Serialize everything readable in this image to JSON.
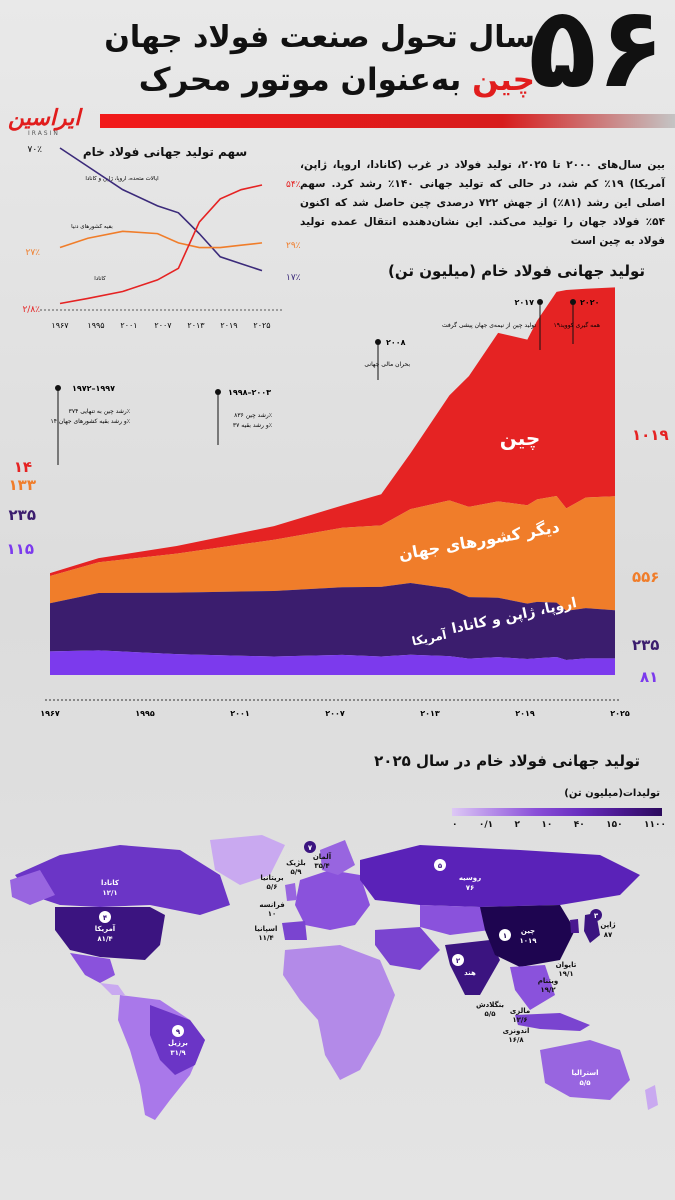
{
  "header": {
    "big_number": "۵۶",
    "title_line1": "سال تحول صنعت فولاد جهان",
    "title_line2_red": "چین",
    "title_line2_rest": "به‌عنوان موتور محرک",
    "logo": "ایراسین",
    "logo_sub": "IRASIN",
    "accent_color": "#e11d1d"
  },
  "intro_text": "بین سال‌های ۲۰۰۰ تا ۲۰۲۵، تولید فولاد در غرب (کانادا، اروپا، ژاپن، آمریکا) ۱۹٪ کم شد، در حالی که تولید جهانی ۱۴۰٪ رشد کرد. سهم اصلی این رشد (۸۱٪) از جهش ۷۲۲ درصدی چین حاصل شد که اکنون ۵۴٪ فولاد جهان را تولید می‌کند. این نشان‌دهنده انتقال عمده تولید فولاد به چین است",
  "share_chart": {
    "title": "سهم تولید جهانی فولاد خام",
    "y_top_label": "۷۰٪",
    "left_values": [
      "۲۷٪",
      "۲/۸٪"
    ],
    "right_values": [
      "۵۴٪",
      "۲۹٪",
      "۱۷٪"
    ],
    "series_labels": [
      "ایالات متحده، اروپا، ژاپن و کانادا",
      "بقیه کشورهای دنیا",
      "کانادا"
    ],
    "x_ticks": [
      "۱۹۶۷",
      "۱۹۹۵",
      "۲۰۰۱",
      "۲۰۰۷",
      "۲۰۱۳",
      "۲۰۱۹",
      "۲۰۲۵"
    ]
  },
  "main_chart": {
    "title": "تولید جهانی فولاد خام (میلیون تن)",
    "x_ticks": [
      "۱۹۶۷",
      "۱۹۹۵",
      "۲۰۰۱",
      "۲۰۰۷",
      "۲۰۱۳",
      "۲۰۱۹",
      "۲۰۲۵"
    ],
    "layer_labels": [
      "چین",
      "دیگر کشورهای جهان",
      "اروپا، ژاپن و کانادا",
      "آمریکا"
    ],
    "start_values": [
      "۱۴",
      "۱۳۳",
      "۲۳۵",
      "۱۱۵"
    ],
    "end_values": [
      "۱۰۱۹",
      "۵۵۶",
      "۲۳۵",
      "۸۱"
    ],
    "annotations": [
      {
        "year": "۱۹۷۲–۱۹۹۷",
        "text1": "رشد چین به تنهایی ۳۷۴٪",
        "text2": "و رشد بقیه کشورهای جهان ۱۴٪"
      },
      {
        "year": "۱۹۹۸–۲۰۰۳",
        "text1": "رشد چین ۸۳۶٪",
        "text2": "و رشد بقیه ۳۷٪"
      },
      {
        "year": "۲۰۰۸",
        "text1": "بحران مالی جهانی",
        "text2": ""
      },
      {
        "year": "۲۰۱۷",
        "text1": "تولید چین از نیمه‌ی جهان پیشی گرفت",
        "text2": ""
      },
      {
        "year": "۲۰۲۰",
        "text1": "همه گیری کووید۱۹",
        "text2": ""
      }
    ]
  },
  "map": {
    "title": "تولید جهانی فولاد خام در سال ۲۰۲۵",
    "legend_title": "تولیدات(میلیون تن)",
    "legend_ticks": [
      "۰",
      "۰/۱",
      "۲",
      "۱۰",
      "۴۰",
      "۱۵۰",
      "۱۱۰۰"
    ],
    "labels": [
      {
        "rank": "",
        "name": "کانادا",
        "value": "۱۲/۱"
      },
      {
        "rank": "۴",
        "name": "آمریکا",
        "value": "۸۱/۴"
      },
      {
        "rank": "۹",
        "name": "برزیل",
        "value": "۳۱/۹"
      },
      {
        "rank": "۵",
        "name": "روسیه",
        "value": "۷۶"
      },
      {
        "rank": "۱",
        "name": "چین",
        "value": "۱۰۱۹"
      },
      {
        "rank": "۳",
        "name": "ژاپن",
        "value": "۸۷"
      },
      {
        "rank": "۲",
        "name": "هند",
        "value": ""
      },
      {
        "rank": "۷",
        "name": "آلمان",
        "value": "۳۵/۴"
      },
      {
        "rank": "",
        "name": "بلژیک",
        "value": "۵/۹"
      },
      {
        "rank": "",
        "name": "بریتانیا",
        "value": "۵/۶"
      },
      {
        "rank": "",
        "name": "فرانسه",
        "value": "۱۰"
      },
      {
        "rank": "",
        "name": "اسپانیا",
        "value": "۱۱/۴"
      },
      {
        "rank": "",
        "name": "اندونزی",
        "value": "۱۶/۸"
      },
      {
        "rank": "",
        "name": "ویتنام",
        "value": "۱۹/۲"
      },
      {
        "rank": "",
        "name": "تایوان",
        "value": "۱۹/۱"
      },
      {
        "rank": "",
        "name": "استرالیا",
        "value": "۵/۵"
      },
      {
        "rank": "",
        "name": "بنگلادش",
        "value": "۵/۵"
      },
      {
        "rank": "",
        "name": "مالزی",
        "value": "۱۲/۶"
      }
    ]
  },
  "chart_data": [
    {
      "type": "line",
      "title": "سهم تولید جهانی فولاد خام",
      "x": [
        1967,
        1975,
        1985,
        1995,
        2001,
        2007,
        2013,
        2019,
        2025
      ],
      "ylim": [
        0,
        70
      ],
      "series": [
        {
          "name": "ایالات متحده، اروپا، ژاپن و کانادا",
          "color": "#3b2a7a",
          "values": [
            70,
            62,
            52,
            45,
            42,
            33,
            23,
            20,
            17
          ]
        },
        {
          "name": "بقیه کشورهای دنیا",
          "color": "#f07d2a",
          "values": [
            27,
            31,
            34,
            33,
            29,
            27,
            27,
            28,
            29
          ]
        },
        {
          "name": "کانادا",
          "color": "#e52323",
          "values": [
            2.8,
            5,
            8,
            13,
            18,
            38,
            48,
            52,
            54
          ]
        }
      ]
    },
    {
      "type": "area",
      "title": "تولید جهانی فولاد خام (میلیون تن)",
      "x": [
        1967,
        1972,
        1980,
        1990,
        1997,
        2001,
        2004,
        2008,
        2010,
        2013,
        2016,
        2017,
        2019,
        2020,
        2022,
        2025
      ],
      "stacked_order": [
        "آمریکا",
        "اروپا، ژاپن و کانادا",
        "دیگر کشورهای جهان",
        "چین"
      ],
      "series": [
        {
          "name": "آمریکا",
          "color": "#7c3aed",
          "values": [
            115,
            120,
            102,
            90,
            98,
            90,
            99,
            92,
            80,
            87,
            78,
            82,
            88,
            73,
            81,
            81
          ]
        },
        {
          "name": "اروپا، ژاپن و کانادا",
          "color": "#3b1d6e",
          "values": [
            235,
            280,
            300,
            320,
            330,
            340,
            350,
            330,
            300,
            290,
            270,
            275,
            265,
            240,
            245,
            235
          ]
        },
        {
          "name": "دیگر کشورهای جهان",
          "color": "#f07d2a",
          "values": [
            133,
            150,
            190,
            250,
            290,
            300,
            360,
            430,
            440,
            470,
            480,
            500,
            520,
            500,
            540,
            556
          ]
        },
        {
          "name": "چین",
          "color": "#e52323",
          "values": [
            14,
            20,
            37,
            66,
            109,
            152,
            272,
            512,
            638,
            822,
            808,
            871,
            996,
            1065,
            1018,
            1019
          ]
        }
      ]
    },
    {
      "type": "heatmap",
      "title": "تولید جهانی فولاد خام در سال ۲۰۲۵",
      "legend_ticks": [
        0,
        0.1,
        2,
        10,
        40,
        150,
        1100
      ],
      "values": {
        "چین": 1019,
        "آمریکا": 81.4,
        "ژاپن": 87,
        "روسیه": 76,
        "آلمان": 35.4,
        "برزیل": 31.9,
        "ویتنام": 19.2,
        "تایوان": 19.1,
        "اندونزی": 16.8,
        "مالزی": 12.6,
        "کانادا": 12.1,
        "اسپانیا": 11.4,
        "فرانسه": 10,
        "بلژیک": 5.9,
        "بریتانیا": 5.6,
        "استرالیا": 5.5,
        "بنگلادش": 5.5
      }
    }
  ]
}
